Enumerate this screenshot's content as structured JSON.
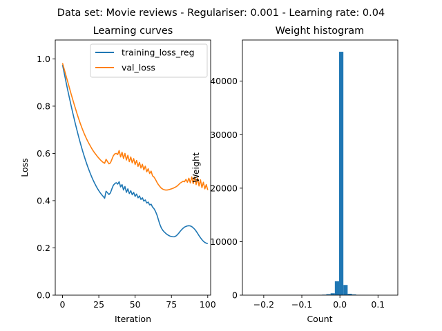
{
  "figure": {
    "suptitle": "Data set: Movie reviews - Regulariser: 0.001 - Learning rate: 0.04"
  },
  "chart_data": [
    {
      "type": "line",
      "title": "Learning curves",
      "xlabel": "Iteration",
      "ylabel": "Loss",
      "xlim": [
        -5,
        102
      ],
      "ylim": [
        0,
        1.08
      ],
      "xticks": [
        0,
        25,
        50,
        75,
        100
      ],
      "xtick_labels": [
        "0",
        "25",
        "50",
        "75",
        "100"
      ],
      "yticks": [
        0.0,
        0.2,
        0.4,
        0.6,
        0.8,
        1.0
      ],
      "ytick_labels": [
        "0.0",
        "0.2",
        "0.4",
        "0.6",
        "0.8",
        "1.0"
      ],
      "grid": false,
      "legend_position": "top-right",
      "series": [
        {
          "name": "training_loss_reg",
          "color": "#1f77b4",
          "x": [
            0,
            1,
            2,
            3,
            4,
            5,
            6,
            7,
            8,
            9,
            10,
            11,
            12,
            13,
            14,
            15,
            16,
            17,
            18,
            19,
            20,
            21,
            22,
            23,
            24,
            25,
            26,
            27,
            28,
            29,
            30,
            31,
            32,
            33,
            34,
            35,
            36,
            37,
            38,
            39,
            40,
            41,
            42,
            43,
            44,
            45,
            46,
            47,
            48,
            49,
            50,
            51,
            52,
            53,
            54,
            55,
            56,
            57,
            58,
            59,
            60,
            61,
            62,
            63,
            64,
            65,
            66,
            67,
            68,
            69,
            70,
            71,
            72,
            73,
            74,
            75,
            76,
            77,
            78,
            79,
            80,
            81,
            82,
            83,
            84,
            85,
            86,
            87,
            88,
            89,
            90,
            91,
            92,
            93,
            94,
            95,
            96,
            97,
            98,
            99,
            100
          ],
          "y": [
            0.975,
            0.945,
            0.915,
            0.885,
            0.856,
            0.828,
            0.8,
            0.773,
            0.747,
            0.721,
            0.697,
            0.673,
            0.65,
            0.628,
            0.607,
            0.587,
            0.568,
            0.55,
            0.533,
            0.517,
            0.502,
            0.488,
            0.475,
            0.463,
            0.452,
            0.442,
            0.433,
            0.425,
            0.418,
            0.41,
            0.44,
            0.433,
            0.426,
            0.433,
            0.45,
            0.465,
            0.472,
            0.476,
            0.47,
            0.48,
            0.458,
            0.468,
            0.445,
            0.46,
            0.435,
            0.45,
            0.43,
            0.442,
            0.425,
            0.435,
            0.418,
            0.428,
            0.412,
            0.42,
            0.405,
            0.412,
            0.398,
            0.403,
            0.39,
            0.394,
            0.382,
            0.385,
            0.373,
            0.366,
            0.355,
            0.34,
            0.32,
            0.3,
            0.285,
            0.275,
            0.268,
            0.262,
            0.257,
            0.253,
            0.25,
            0.248,
            0.247,
            0.247,
            0.25,
            0.255,
            0.262,
            0.27,
            0.277,
            0.283,
            0.288,
            0.291,
            0.293,
            0.294,
            0.293,
            0.29,
            0.285,
            0.279,
            0.271,
            0.262,
            0.252,
            0.243,
            0.235,
            0.228,
            0.223,
            0.22,
            0.218
          ]
        },
        {
          "name": "val_loss",
          "color": "#ff7f0e",
          "x": [
            0,
            1,
            2,
            3,
            4,
            5,
            6,
            7,
            8,
            9,
            10,
            11,
            12,
            13,
            14,
            15,
            16,
            17,
            18,
            19,
            20,
            21,
            22,
            23,
            24,
            25,
            26,
            27,
            28,
            29,
            30,
            31,
            32,
            33,
            34,
            35,
            36,
            37,
            38,
            39,
            40,
            41,
            42,
            43,
            44,
            45,
            46,
            47,
            48,
            49,
            50,
            51,
            52,
            53,
            54,
            55,
            56,
            57,
            58,
            59,
            60,
            61,
            62,
            63,
            64,
            65,
            66,
            67,
            68,
            69,
            70,
            71,
            72,
            73,
            74,
            75,
            76,
            77,
            78,
            79,
            80,
            81,
            82,
            83,
            84,
            85,
            86,
            87,
            88,
            89,
            90,
            91,
            92,
            93,
            94,
            95,
            96,
            97,
            98,
            99,
            100
          ],
          "y": [
            0.982,
            0.96,
            0.938,
            0.916,
            0.894,
            0.872,
            0.85,
            0.829,
            0.808,
            0.788,
            0.768,
            0.749,
            0.731,
            0.714,
            0.698,
            0.683,
            0.669,
            0.656,
            0.644,
            0.633,
            0.622,
            0.612,
            0.603,
            0.595,
            0.587,
            0.58,
            0.573,
            0.567,
            0.562,
            0.558,
            0.575,
            0.565,
            0.556,
            0.56,
            0.575,
            0.59,
            0.598,
            0.6,
            0.595,
            0.612,
            0.585,
            0.605,
            0.578,
            0.6,
            0.572,
            0.592,
            0.565,
            0.585,
            0.56,
            0.578,
            0.553,
            0.57,
            0.545,
            0.562,
            0.538,
            0.554,
            0.53,
            0.546,
            0.522,
            0.535,
            0.515,
            0.525,
            0.505,
            0.5,
            0.49,
            0.478,
            0.468,
            0.46,
            0.453,
            0.449,
            0.446,
            0.445,
            0.445,
            0.446,
            0.448,
            0.45,
            0.452,
            0.455,
            0.458,
            0.462,
            0.468,
            0.474,
            0.478,
            0.482,
            0.48,
            0.49,
            0.478,
            0.495,
            0.475,
            0.5,
            0.472,
            0.5,
            0.468,
            0.495,
            0.462,
            0.488,
            0.455,
            0.478,
            0.45,
            0.468,
            0.445
          ]
        }
      ]
    },
    {
      "type": "bar",
      "title": "Weight histogram",
      "xlabel": "Count",
      "ylabel": "Weight",
      "xlim": [
        -0.256,
        0.152
      ],
      "ylim": [
        0,
        47700
      ],
      "xticks": [
        -0.2,
        -0.1,
        0.0,
        0.1
      ],
      "xtick_labels": [
        "−0.2",
        "−0.1",
        "0.0",
        "0.1"
      ],
      "yticks": [
        0,
        10000,
        20000,
        30000,
        40000
      ],
      "ytick_labels": [
        "0",
        "10000",
        "20000",
        "30000",
        "40000"
      ],
      "grid": false,
      "color": "#1f77b4",
      "bins": [
        {
          "x0": -0.2373,
          "x1": -0.2261,
          "value": 5
        },
        {
          "x0": -0.2261,
          "x1": -0.2149,
          "value": 3
        },
        {
          "x0": -0.2149,
          "x1": -0.2037,
          "value": 3
        },
        {
          "x0": -0.2037,
          "x1": -0.1925,
          "value": 3
        },
        {
          "x0": -0.1925,
          "x1": -0.1813,
          "value": 4
        },
        {
          "x0": -0.1813,
          "x1": -0.1701,
          "value": 4
        },
        {
          "x0": -0.1701,
          "x1": -0.1589,
          "value": 5
        },
        {
          "x0": -0.1589,
          "x1": -0.1477,
          "value": 5
        },
        {
          "x0": -0.1477,
          "x1": -0.1365,
          "value": 6
        },
        {
          "x0": -0.1365,
          "x1": -0.1253,
          "value": 7
        },
        {
          "x0": -0.1253,
          "x1": -0.1141,
          "value": 8
        },
        {
          "x0": -0.1141,
          "x1": -0.1029,
          "value": 10
        },
        {
          "x0": -0.1029,
          "x1": -0.0917,
          "value": 12
        },
        {
          "x0": -0.0917,
          "x1": -0.0805,
          "value": 15
        },
        {
          "x0": -0.0805,
          "x1": -0.0693,
          "value": 20
        },
        {
          "x0": -0.0693,
          "x1": -0.0581,
          "value": 30
        },
        {
          "x0": -0.0581,
          "x1": -0.0469,
          "value": 50
        },
        {
          "x0": -0.0469,
          "x1": -0.0357,
          "value": 90
        },
        {
          "x0": -0.0357,
          "x1": -0.0245,
          "value": 180
        },
        {
          "x0": -0.0245,
          "x1": -0.0133,
          "value": 350
        },
        {
          "x0": -0.0133,
          "x1": -0.0021,
          "value": 2600
        },
        {
          "x0": -0.0021,
          "x1": 0.0091,
          "value": 45500
        },
        {
          "x0": 0.0091,
          "x1": 0.0203,
          "value": 1900
        },
        {
          "x0": 0.0203,
          "x1": 0.0315,
          "value": 250
        },
        {
          "x0": 0.0315,
          "x1": 0.0427,
          "value": 130
        },
        {
          "x0": 0.0427,
          "x1": 0.0539,
          "value": 60
        },
        {
          "x0": 0.0539,
          "x1": 0.0651,
          "value": 35
        },
        {
          "x0": 0.0651,
          "x1": 0.0763,
          "value": 20
        },
        {
          "x0": 0.0763,
          "x1": 0.0875,
          "value": 12
        },
        {
          "x0": 0.0875,
          "x1": 0.0987,
          "value": 8
        },
        {
          "x0": 0.0987,
          "x1": 0.1099,
          "value": 5
        },
        {
          "x0": 0.1099,
          "x1": 0.1211,
          "value": 4
        },
        {
          "x0": 0.1211,
          "x1": 0.1323,
          "value": 3
        }
      ]
    }
  ]
}
